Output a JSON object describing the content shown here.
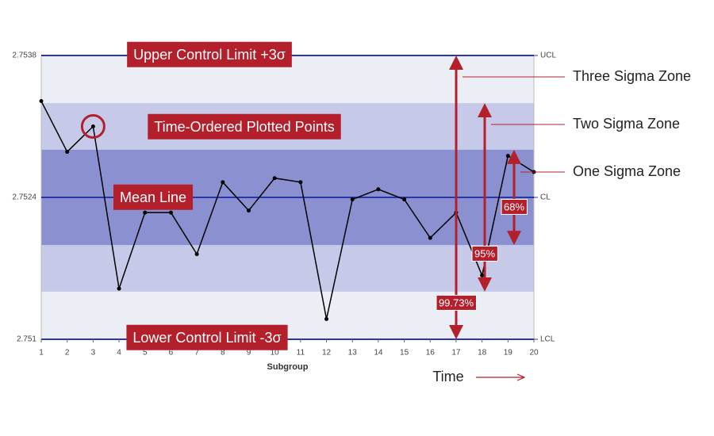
{
  "chart_data": {
    "type": "line",
    "x_label": "Subgroup",
    "time_label": "Time",
    "x": [
      1,
      2,
      3,
      4,
      5,
      6,
      7,
      8,
      9,
      10,
      11,
      12,
      13,
      14,
      15,
      16,
      17,
      18,
      19,
      20
    ],
    "values": [
      2.75335,
      2.75285,
      2.7531,
      2.7515,
      2.75225,
      2.75225,
      2.75184,
      2.75255,
      2.75227,
      2.75259,
      2.75255,
      2.7512,
      2.75238,
      2.75248,
      2.75238,
      2.752,
      2.75225,
      2.75163,
      2.75281,
      2.75265
    ],
    "color": "#000000",
    "xlim": [
      1,
      20
    ],
    "xticks": [
      1,
      2,
      3,
      4,
      5,
      6,
      7,
      8,
      9,
      10,
      11,
      12,
      13,
      14,
      15,
      16,
      17,
      18,
      19,
      20
    ],
    "ylim": [
      2.751,
      2.7538
    ],
    "yticks": [
      2.751,
      2.7524,
      2.7538
    ],
    "y2lim": [
      2.751,
      2.7538
    ],
    "y2ticks": [
      {
        "value": 2.751,
        "label": "LCL"
      },
      {
        "value": 2.7524,
        "label": "CL"
      },
      {
        "value": 2.7538,
        "label": "UCL"
      }
    ],
    "limit_color": "#2a36a8",
    "annotation_color": "#b3202c",
    "zones": [
      {
        "name": "Three Sigma Zone",
        "percent": "99.73%",
        "lower": 2.751,
        "upper": 2.7538,
        "color": "#eceef6"
      },
      {
        "name": "Two Sigma Zone",
        "percent": "95%",
        "lower": 2.75147,
        "upper": 2.75333,
        "color": "#c6cae8"
      },
      {
        "name": "One Sigma Zone",
        "percent": "68%",
        "lower": 2.75193,
        "upper": 2.75287,
        "color": "#8b91d0"
      }
    ],
    "annotations": {
      "ucl": "Upper Control Limit +3σ",
      "points": "Time-Ordered Plotted Points",
      "mean": "Mean Line",
      "lcl": "Lower Control Limit -3σ"
    }
  }
}
